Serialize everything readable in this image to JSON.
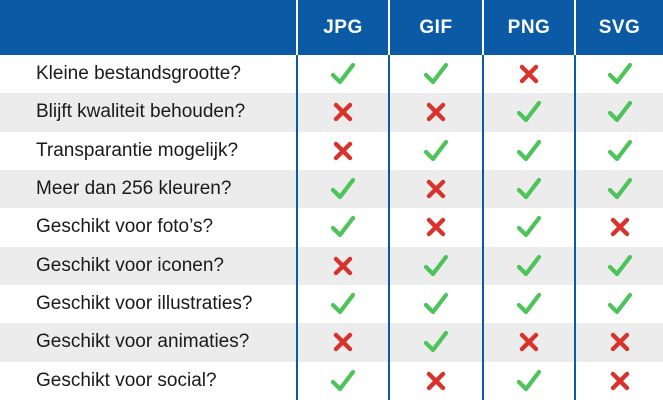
{
  "columns": [
    "JPG",
    "GIF",
    "PNG",
    "SVG"
  ],
  "rows": [
    {
      "label": "Kleine bestandsgrootte?",
      "values": [
        "check",
        "check",
        "cross",
        "check"
      ]
    },
    {
      "label": "Blijft kwaliteit behouden?",
      "values": [
        "cross",
        "cross",
        "check",
        "check"
      ]
    },
    {
      "label": "Transparantie mogelijk?",
      "values": [
        "cross",
        "check",
        "check",
        "check"
      ]
    },
    {
      "label": "Meer dan 256 kleuren?",
      "values": [
        "check",
        "cross",
        "check",
        "check"
      ]
    },
    {
      "label": "Geschikt voor foto’s?",
      "values": [
        "check",
        "cross",
        "check",
        "cross"
      ]
    },
    {
      "label": "Geschikt voor iconen?",
      "values": [
        "cross",
        "check",
        "check",
        "check"
      ]
    },
    {
      "label": "Geschikt voor illustraties?",
      "values": [
        "check",
        "check",
        "check",
        "check"
      ]
    },
    {
      "label": "Geschikt voor animaties?",
      "values": [
        "cross",
        "check",
        "cross",
        "cross"
      ]
    },
    {
      "label": "Geschikt voor social?",
      "values": [
        "check",
        "cross",
        "check",
        "cross"
      ]
    }
  ],
  "colors": {
    "header": "#0b5aa6",
    "check": "#4cc45a",
    "cross": "#d9312b",
    "stripe": "#ececec"
  },
  "icons": {
    "check": "check-icon",
    "cross": "cross-icon"
  }
}
